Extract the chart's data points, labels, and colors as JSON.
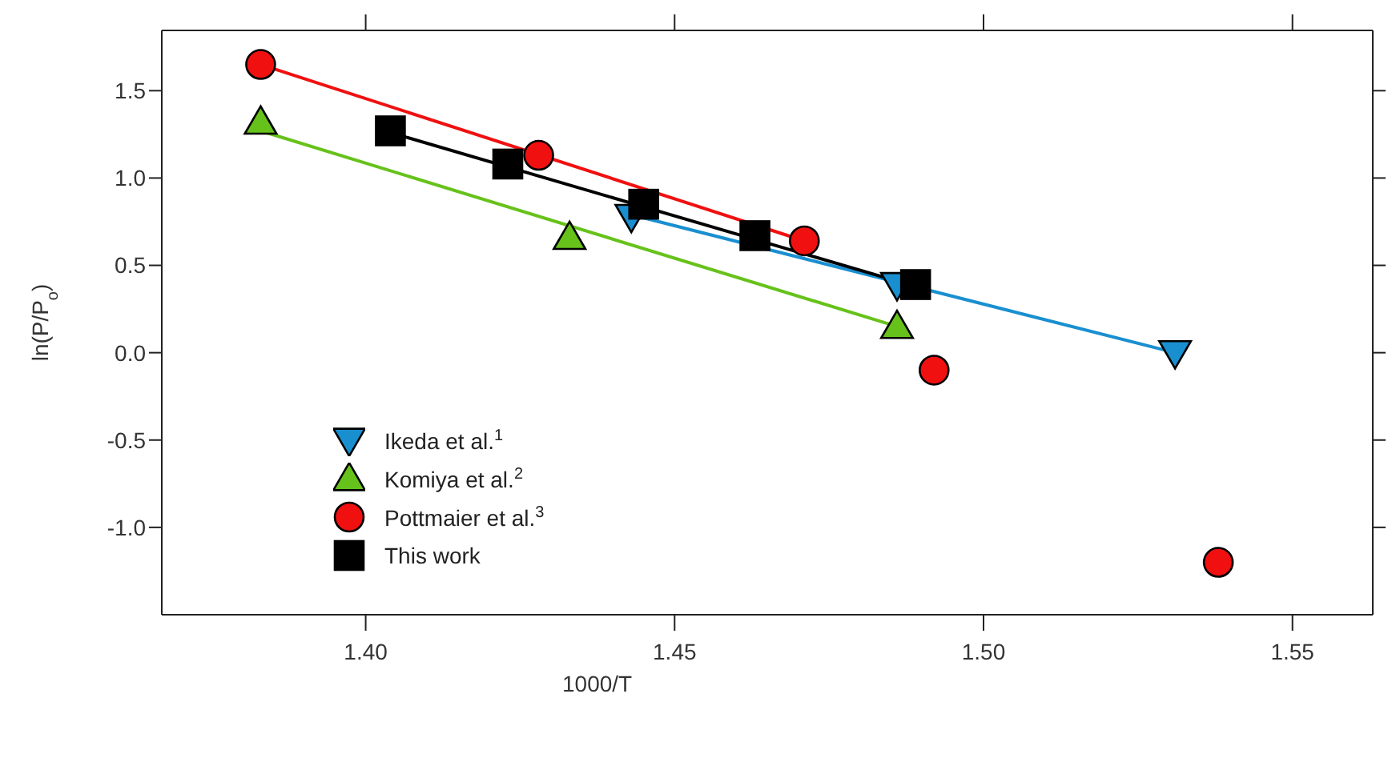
{
  "chart_data": {
    "type": "scatter",
    "xlabel": "1000/T",
    "ylabel": "ln(P/P$_{o}$)",
    "xlim": [
      1.367,
      1.563
    ],
    "xticks": [
      {
        "value": 1.4,
        "label": "1.40"
      },
      {
        "value": 1.45,
        "label": "1.45"
      },
      {
        "value": 1.5,
        "label": "1.50"
      },
      {
        "value": 1.55,
        "label": "1.55"
      }
    ],
    "ylim": [
      -1.5,
      1.845
    ],
    "yticks": [
      {
        "value": -1.0,
        "label": "-1.0"
      },
      {
        "value": -0.5,
        "label": "-0.5"
      },
      {
        "value": 0.0,
        "label": "0.0"
      },
      {
        "value": 0.5,
        "label": "0.5"
      },
      {
        "value": 1.0,
        "label": "1.0"
      },
      {
        "value": 1.5,
        "label": "1.5"
      }
    ],
    "legend": "bottom left",
    "series": [
      {
        "type": "line",
        "marker": "none",
        "color": "#1a8fd0",
        "x": [
          1.443,
          1.531
        ],
        "values": [
          0.79,
          0.0
        ]
      },
      {
        "type": "line",
        "marker": "none",
        "color": "#66c21a",
        "x": [
          1.383,
          1.486
        ],
        "values": [
          1.27,
          0.15
        ]
      },
      {
        "type": "line",
        "marker": "none",
        "color": "#f01010",
        "x": [
          1.383,
          1.471
        ],
        "values": [
          1.65,
          0.64
        ]
      },
      {
        "type": "line",
        "marker": "none",
        "color": "#000000",
        "x": [
          1.404,
          1.486
        ],
        "values": [
          1.26,
          0.41
        ]
      },
      {
        "name": "Ikeda et al.$^{1}$",
        "marker": "triangle_down",
        "color": "#1a8fd0",
        "x": [
          1.443,
          1.486,
          1.531
        ],
        "values": [
          0.78,
          0.39,
          0.0
        ]
      },
      {
        "name": "Komiya et al.$^{2}$",
        "marker": "triangle",
        "color": "#66c21a",
        "x": [
          1.383,
          1.433,
          1.486
        ],
        "values": [
          1.32,
          0.66,
          0.15
        ]
      },
      {
        "name": "Pottmaier et al.$^{3}$",
        "marker": "circle",
        "color": "#f01010",
        "x": [
          1.383,
          1.428,
          1.471,
          1.492,
          1.538
        ],
        "values": [
          1.65,
          1.13,
          0.64,
          -0.1,
          -1.2
        ]
      },
      {
        "name": "This work",
        "marker": "square",
        "color": "#000000",
        "x": [
          1.404,
          1.423,
          1.445,
          1.463,
          1.489
        ],
        "values": [
          1.27,
          1.08,
          0.85,
          0.67,
          0.39
        ]
      }
    ]
  }
}
